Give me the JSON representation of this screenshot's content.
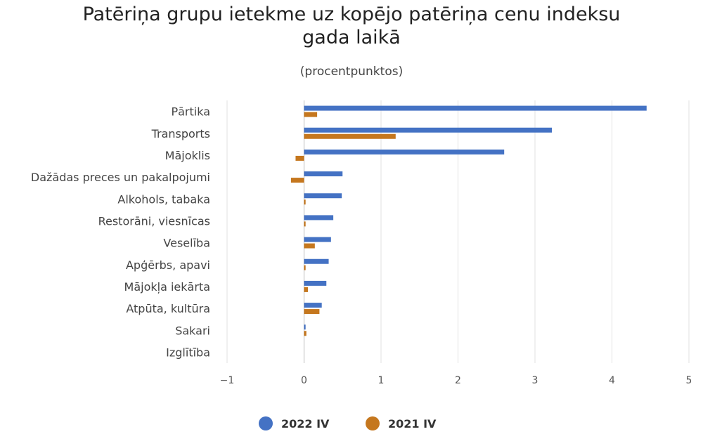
{
  "chart_data": {
    "type": "bar",
    "orientation": "horizontal",
    "title_line1": "Patēriņa grupu ietekme uz kopējo patēriņa cenu indeksu",
    "title_line2": "gada laikā",
    "subtitle": "(procentpunktos)",
    "categories": [
      "Pārtika",
      "Transports",
      "Mājoklis",
      "Dažādas preces un pakalpojumi",
      "Alkohols, tabaka",
      "Restorāni, viesnīcas",
      "Veselība",
      "Apģērbs, apavi",
      "Mājokļa iekārta",
      "Atpūta, kultūra",
      "Sakari",
      "Izglītība"
    ],
    "series": [
      {
        "name": "2022 IV",
        "color": "#4472c4",
        "values": [
          4.45,
          3.22,
          2.6,
          0.5,
          0.49,
          0.38,
          0.35,
          0.32,
          0.29,
          0.23,
          0.02,
          0.0
        ]
      },
      {
        "name": "2021 IV",
        "color": "#c5771e",
        "values": [
          0.17,
          1.19,
          -0.11,
          -0.17,
          0.02,
          0.02,
          0.14,
          0.02,
          0.05,
          0.2,
          0.03,
          0.0
        ]
      }
    ],
    "xlim": [
      -1,
      5
    ],
    "xticks": [
      "−1",
      "0",
      "1",
      "2",
      "3",
      "4",
      "5"
    ],
    "grid": true,
    "legend_position": "bottom"
  }
}
